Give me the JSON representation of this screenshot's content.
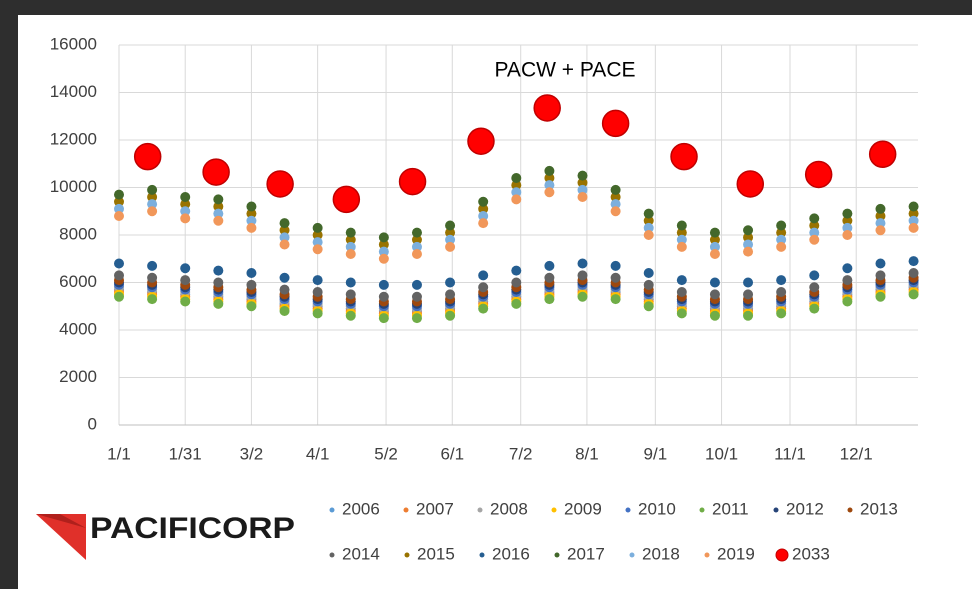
{
  "logo": "PACIFICORP",
  "chart_data": {
    "type": "scatter",
    "title": "PACW + PACE",
    "x": [
      0,
      15,
      30,
      45,
      60,
      75,
      90,
      105,
      120,
      135,
      150,
      165,
      180,
      195,
      210,
      225,
      240,
      255,
      270,
      285,
      300,
      315,
      330,
      345,
      360
    ],
    "xlim": [
      0,
      362
    ],
    "xticks": [
      {
        "value": 0,
        "label": "1/1"
      },
      {
        "value": 30,
        "label": "1/31"
      },
      {
        "value": 60,
        "label": "3/2"
      },
      {
        "value": 90,
        "label": "4/1"
      },
      {
        "value": 121,
        "label": "5/2"
      },
      {
        "value": 151,
        "label": "6/1"
      },
      {
        "value": 182,
        "label": "7/2"
      },
      {
        "value": 212,
        "label": "8/1"
      },
      {
        "value": 243,
        "label": "9/1"
      },
      {
        "value": 273,
        "label": "10/1"
      },
      {
        "value": 304,
        "label": "11/1"
      },
      {
        "value": 334,
        "label": "12/1"
      }
    ],
    "ylim": [
      0,
      16000
    ],
    "yticks": [
      0,
      2000,
      4000,
      6000,
      8000,
      10000,
      12000,
      14000,
      16000
    ],
    "grid": true,
    "legend": "bottom",
    "series": [
      {
        "name": "2006",
        "color": "#5b9bd5",
        "values": [
          5700,
          5600,
          5500,
          5400,
          5300,
          5100,
          5000,
          4900,
          4800,
          4800,
          4900,
          5200,
          5400,
          5600,
          5700,
          5600,
          5300,
          5000,
          4900,
          4900,
          5000,
          5200,
          5500,
          5700,
          5800
        ]
      },
      {
        "name": "2007",
        "color": "#ed7d31",
        "values": [
          5600,
          5500,
          5400,
          5300,
          5200,
          5000,
          4900,
          4800,
          4700,
          4700,
          4800,
          5100,
          5300,
          5500,
          5600,
          5500,
          5200,
          4900,
          4800,
          4800,
          4900,
          5100,
          5400,
          5600,
          5700
        ]
      },
      {
        "name": "2008",
        "color": "#a5a5a5",
        "values": [
          5800,
          5700,
          5600,
          5500,
          5400,
          5200,
          5100,
          5000,
          4900,
          4900,
          5000,
          5300,
          5500,
          5700,
          5800,
          5700,
          5400,
          5100,
          5000,
          5000,
          5100,
          5300,
          5600,
          5800,
          5900
        ]
      },
      {
        "name": "2009",
        "color": "#ffc000",
        "values": [
          5500,
          5400,
          5300,
          5200,
          5100,
          4900,
          4800,
          4700,
          4600,
          4600,
          4700,
          5000,
          5200,
          5400,
          5500,
          5400,
          5100,
          4800,
          4700,
          4700,
          4800,
          5000,
          5300,
          5500,
          5600
        ]
      },
      {
        "name": "2010",
        "color": "#4472c4",
        "values": [
          5900,
          5800,
          5700,
          5600,
          5500,
          5300,
          5200,
          5100,
          5000,
          5000,
          5100,
          5400,
          5600,
          5800,
          5900,
          5800,
          5500,
          5200,
          5100,
          5100,
          5200,
          5400,
          5700,
          5900,
          6000
        ]
      },
      {
        "name": "2011",
        "color": "#70ad47",
        "values": [
          5400,
          5300,
          5200,
          5100,
          5000,
          4800,
          4700,
          4600,
          4500,
          4500,
          4600,
          4900,
          5100,
          5300,
          5400,
          5300,
          5000,
          4700,
          4600,
          4600,
          4700,
          4900,
          5200,
          5400,
          5500
        ]
      },
      {
        "name": "2012",
        "color": "#264478",
        "values": [
          6000,
          5900,
          5800,
          5700,
          5600,
          5400,
          5300,
          5200,
          5100,
          5100,
          5200,
          5500,
          5700,
          5900,
          6000,
          5900,
          5600,
          5300,
          5200,
          5200,
          5300,
          5500,
          5800,
          6000,
          6100
        ]
      },
      {
        "name": "2013",
        "color": "#9e480e",
        "values": [
          6100,
          6000,
          5900,
          5800,
          5700,
          5500,
          5400,
          5300,
          5200,
          5200,
          5300,
          5600,
          5800,
          6000,
          6100,
          6000,
          5700,
          5400,
          5300,
          5300,
          5400,
          5600,
          5900,
          6100,
          6200
        ]
      },
      {
        "name": "2014",
        "color": "#636363",
        "values": [
          6300,
          6200,
          6100,
          6000,
          5900,
          5700,
          5600,
          5500,
          5400,
          5400,
          5500,
          5800,
          6000,
          6200,
          6300,
          6200,
          5900,
          5600,
          5500,
          5500,
          5600,
          5800,
          6100,
          6300,
          6400
        ]
      },
      {
        "name": "2015",
        "color": "#997300",
        "values": [
          9400,
          9600,
          9300,
          9200,
          8900,
          8200,
          8000,
          7800,
          7600,
          7800,
          8100,
          9100,
          10100,
          10400,
          10200,
          9600,
          8600,
          8100,
          7800,
          7900,
          8100,
          8400,
          8600,
          8800,
          8900
        ]
      },
      {
        "name": "2016",
        "color": "#255e91",
        "values": [
          6800,
          6700,
          6600,
          6500,
          6400,
          6200,
          6100,
          6000,
          5900,
          5900,
          6000,
          6300,
          6500,
          6700,
          6800,
          6700,
          6400,
          6100,
          6000,
          6000,
          6100,
          6300,
          6600,
          6800,
          6900
        ]
      },
      {
        "name": "2017",
        "color": "#43682b",
        "values": [
          9700,
          9900,
          9600,
          9500,
          9200,
          8500,
          8300,
          8100,
          7900,
          8100,
          8400,
          9400,
          10400,
          10700,
          10500,
          9900,
          8900,
          8400,
          8100,
          8200,
          8400,
          8700,
          8900,
          9100,
          9200
        ]
      },
      {
        "name": "2018",
        "color": "#7cafdd",
        "values": [
          9100,
          9300,
          9000,
          8900,
          8600,
          7900,
          7700,
          7500,
          7300,
          7500,
          7800,
          8800,
          9800,
          10100,
          9900,
          9300,
          8300,
          7800,
          7500,
          7600,
          7800,
          8100,
          8300,
          8500,
          8600
        ]
      },
      {
        "name": "2019",
        "color": "#f1975a",
        "values": [
          8800,
          9000,
          8700,
          8600,
          8300,
          7600,
          7400,
          7200,
          7000,
          7200,
          7500,
          8500,
          9500,
          9800,
          9600,
          9000,
          8000,
          7500,
          7200,
          7300,
          7500,
          7800,
          8000,
          8200,
          8300
        ]
      },
      {
        "name": "2033",
        "color": "#ff0000",
        "x": [
          13,
          44,
          73,
          103,
          133,
          164,
          194,
          225,
          256,
          286,
          317,
          346
        ],
        "values": [
          11300,
          10650,
          10150,
          9500,
          10250,
          11950,
          13350,
          12700,
          11300,
          10150,
          10550,
          11400
        ]
      }
    ]
  }
}
